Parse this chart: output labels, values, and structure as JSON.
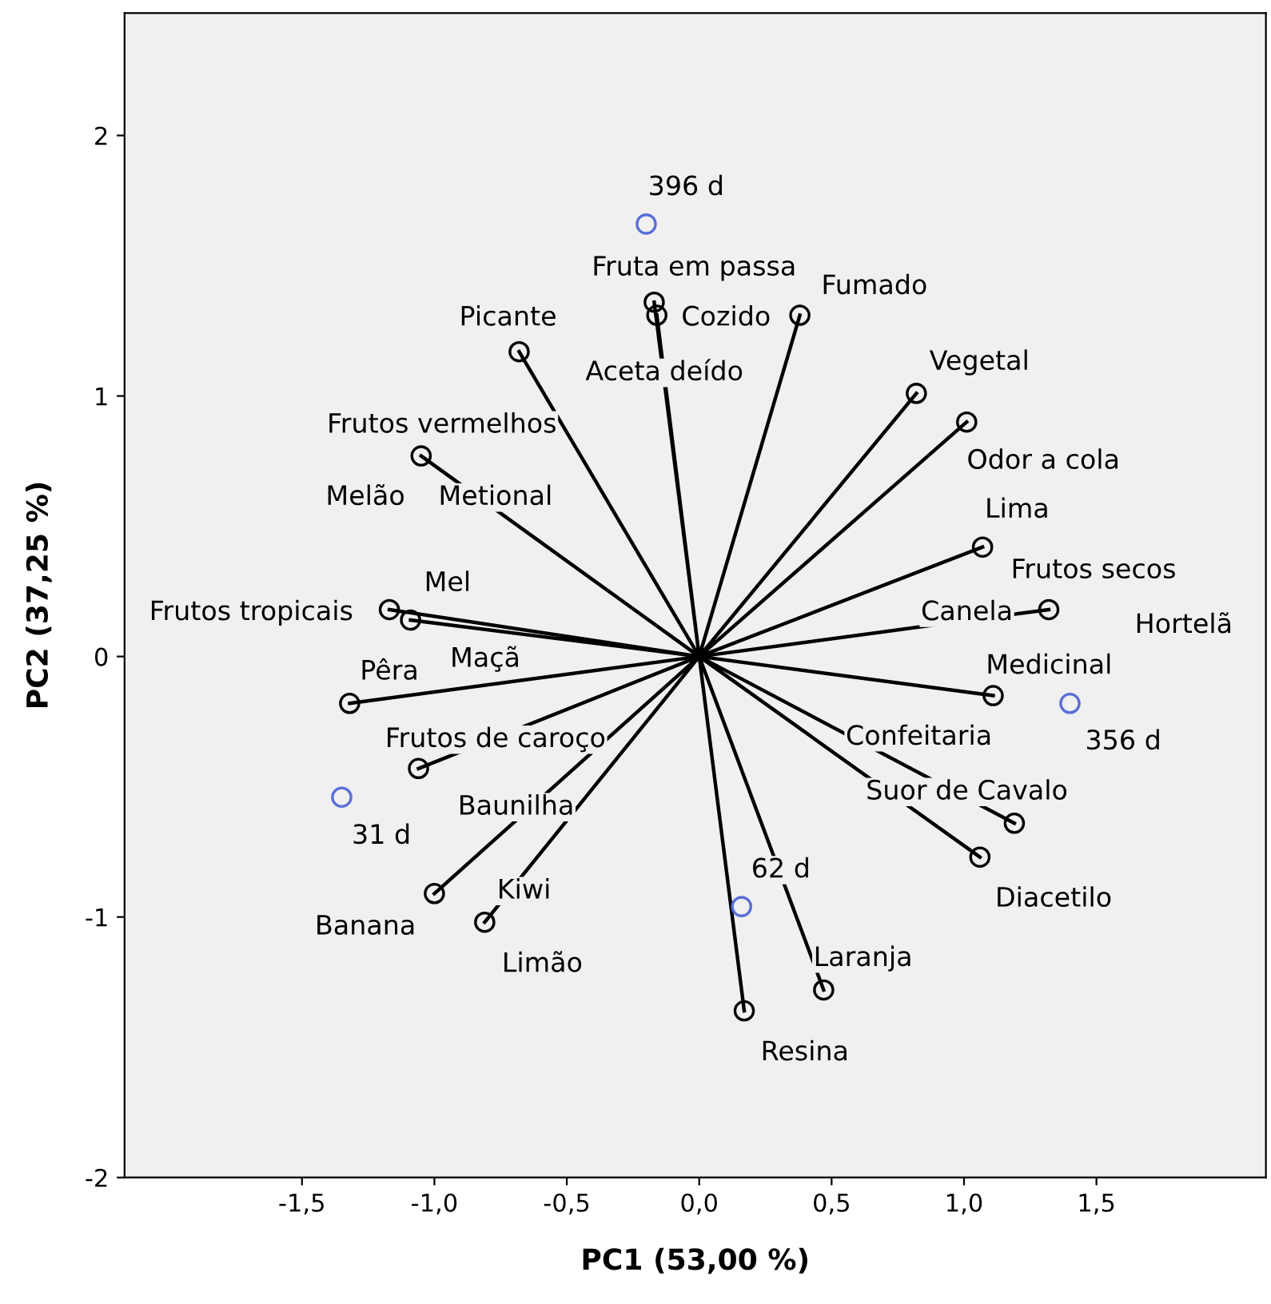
{
  "chart_data": {
    "type": "scatter",
    "xlabel": "PC1 (53,00 %)",
    "ylabel": "PC2 (37,25 %)",
    "xlim": [
      -2.17,
      2.14
    ],
    "ylim": [
      -2.0,
      2.47
    ],
    "xticks": [
      {
        "value": -1.5,
        "label": "-1,5"
      },
      {
        "value": -1.0,
        "label": "-1,0"
      },
      {
        "value": -0.5,
        "label": "-0,5"
      },
      {
        "value": 0.0,
        "label": "0,0"
      },
      {
        "value": 0.5,
        "label": "0,5"
      },
      {
        "value": 1.0,
        "label": "1,0"
      },
      {
        "value": 1.5,
        "label": "1,5"
      }
    ],
    "yticks": [
      -2,
      -1,
      0,
      1,
      2
    ],
    "grid": false,
    "series": [
      {
        "type": "line",
        "color": "#000000",
        "marker": "none",
        "line_style": "solid",
        "x": [
          0,
          -0.17,
          null,
          0,
          -0.16,
          null,
          0,
          0.38,
          null,
          0,
          -0.68,
          null,
          0,
          0.82,
          null,
          0,
          1.01,
          null,
          0,
          -1.05,
          null,
          0,
          1.07,
          null,
          0,
          1.32,
          null,
          0,
          1.11,
          null,
          0,
          1.06,
          null,
          0,
          1.19,
          null,
          0,
          0.47,
          null,
          0,
          0.17,
          null,
          0,
          -0.81,
          null,
          0,
          -1.0,
          null,
          0,
          -1.06,
          null,
          0,
          -1.32,
          null,
          0,
          -1.17,
          null,
          0,
          -1.09
        ],
        "values": [
          0,
          1.36,
          null,
          0,
          1.31,
          null,
          0,
          1.31,
          null,
          0,
          1.17,
          null,
          0,
          1.01,
          null,
          0,
          0.9,
          null,
          0,
          0.77,
          null,
          0,
          0.42,
          null,
          0,
          0.18,
          null,
          0,
          -0.15,
          null,
          0,
          -0.77,
          null,
          0,
          -0.64,
          null,
          0,
          -1.28,
          null,
          0,
          -1.36,
          null,
          0,
          -1.02,
          null,
          0,
          -0.91,
          null,
          0,
          -0.43,
          null,
          0,
          -0.18,
          null,
          0,
          0.18,
          null,
          0,
          0.14
        ]
      },
      {
        "color": "#000000",
        "marker": "circle",
        "x": [
          -0.17,
          -0.16,
          0.38,
          -0.68,
          0.82,
          1.01,
          -1.05,
          1.07,
          1.32,
          1.11,
          1.06,
          1.19,
          0.47,
          0.17,
          -0.81,
          -1.0,
          -1.06,
          -1.32,
          -1.17,
          -1.09
        ],
        "values": [
          1.36,
          1.31,
          1.31,
          1.17,
          1.01,
          0.9,
          0.77,
          0.42,
          0.18,
          -0.15,
          -0.77,
          -0.64,
          -1.28,
          -1.36,
          -1.02,
          -0.91,
          -0.43,
          -0.18,
          0.18,
          0.14
        ]
      },
      {
        "color": "#5a6fd6",
        "marker": "circle",
        "x": [
          -0.2,
          1.4,
          -1.35,
          0.16
        ],
        "values": [
          1.66,
          -0.18,
          -0.54,
          -0.96
        ]
      }
    ],
    "annotations": [
      "396 d",
      "Fruta em passa",
      "Cozido",
      "Fumado",
      "Picante",
      "Aceta deído",
      "Vegetal",
      "Frutos vermelhos",
      "Odor a cola",
      "Melão",
      "Metional",
      "Lima",
      "Mel",
      "Frutos secos",
      "Frutos tropicais",
      "Canela",
      "Hortelã",
      "Maçã",
      "Pêra",
      "Medicinal",
      "Confeitaria",
      "356 d",
      "Frutos de caroço",
      "Suor de Cavalo",
      "Baunilha",
      "31 d",
      "62 d",
      "Kiwi",
      "Diacetilo",
      "Banana",
      "Laranja",
      "Limão",
      "Resina"
    ]
  }
}
